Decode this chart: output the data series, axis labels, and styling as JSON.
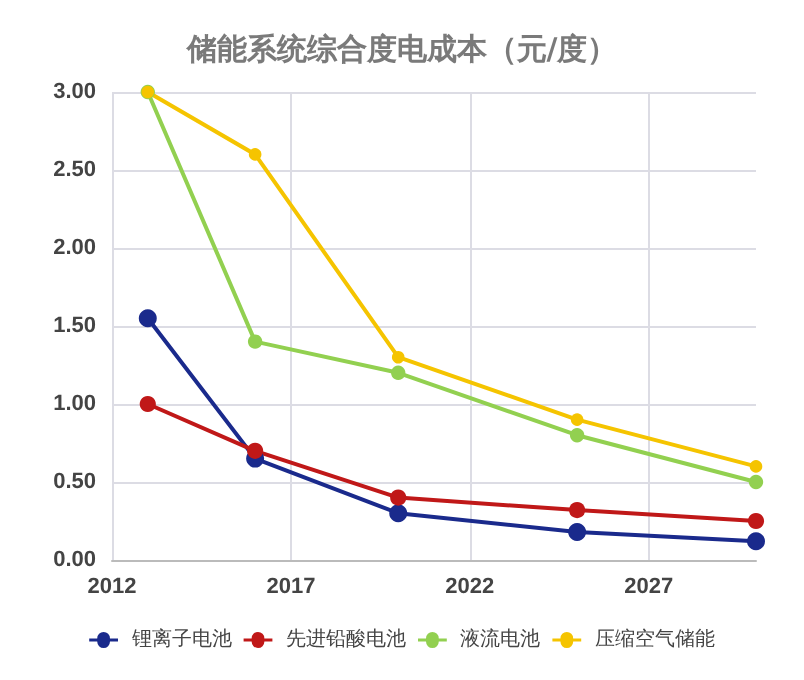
{
  "chart_data": {
    "type": "line",
    "title": "储能系统综合度电成本（元/度）",
    "x": [
      2013,
      2016,
      2020,
      2025,
      2030
    ],
    "series": [
      {
        "name": "锂离子电池",
        "color": "#1a2a8c",
        "values": [
          1.55,
          0.65,
          0.3,
          0.18,
          0.12
        ]
      },
      {
        "name": "先进铅酸电池",
        "color": "#c01818",
        "values": [
          1.0,
          0.7,
          0.4,
          0.32,
          0.25
        ]
      },
      {
        "name": "液流电池",
        "color": "#92d050",
        "values": [
          3.0,
          1.4,
          1.2,
          0.8,
          0.5
        ]
      },
      {
        "name": "压缩空气储能",
        "color": "#f5c400",
        "values": [
          3.0,
          2.6,
          1.3,
          0.9,
          0.6
        ]
      }
    ],
    "xlim": [
      2012,
      2030
    ],
    "xticks": [
      2012,
      2017,
      2022,
      2027
    ],
    "ylim": [
      0,
      3
    ],
    "yticks": [
      {
        "value": 0,
        "label": "0.00"
      },
      {
        "value": 0.5,
        "label": "0.50"
      },
      {
        "value": 1,
        "label": "1.00"
      },
      {
        "value": 1.5,
        "label": "1.50"
      },
      {
        "value": 2,
        "label": "2.00"
      },
      {
        "value": 2.5,
        "label": "2.50"
      },
      {
        "value": 3,
        "label": "3.00"
      }
    ],
    "grid": true,
    "legend": "bottom",
    "marker": "circle",
    "line_style": "solid"
  }
}
